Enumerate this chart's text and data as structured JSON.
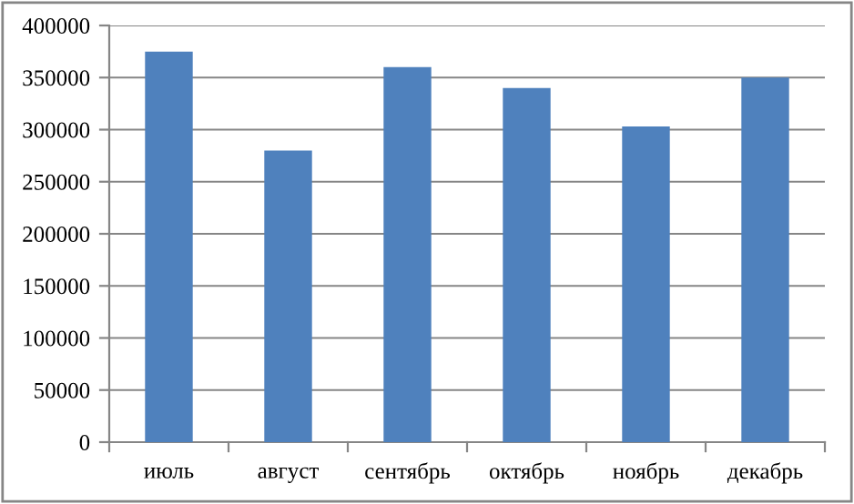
{
  "chart_data": {
    "type": "bar",
    "categories": [
      "июль",
      "август",
      "сентябрь",
      "октябрь",
      "ноябрь",
      "декабрь"
    ],
    "series": [
      {
        "color": "#4f81bd",
        "values": [
          375000,
          280000,
          360000,
          340000,
          303000,
          350000
        ]
      }
    ],
    "ylim": [
      0,
      400000
    ],
    "yticks": [
      0,
      50000,
      100000,
      150000,
      200000,
      250000,
      300000,
      350000,
      400000
    ],
    "grid": "y",
    "legend": false
  }
}
